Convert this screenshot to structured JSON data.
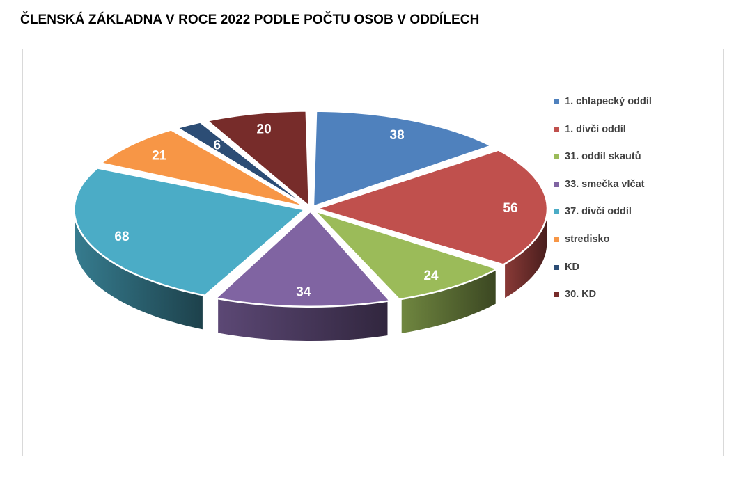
{
  "title": "ČLENSKÁ ZÁKLADNA V ROCE 2022 PODLE POČTU OSOB V ODDÍLECH",
  "chart_data": {
    "type": "pie",
    "title": "ČLENSKÁ ZÁKLADNA V ROCE 2022 PODLE POČTU OSOB V ODDÍLECH",
    "style": "3d-exploded",
    "legend_position": "right",
    "categories": [
      "1. chlapecký oddíl",
      "1. dívčí oddíl",
      "31. oddíl skautů",
      "33. smečka vlčat",
      "37. dívčí oddíl",
      "stredisko",
      "KD",
      "30. KD"
    ],
    "values": [
      38,
      56,
      24,
      34,
      68,
      21,
      6,
      20
    ],
    "colors": [
      "#4f81bd",
      "#c0504d",
      "#9bbb59",
      "#8064a2",
      "#4bacc6",
      "#f79646",
      "#2c4d75",
      "#772c2a"
    ]
  }
}
